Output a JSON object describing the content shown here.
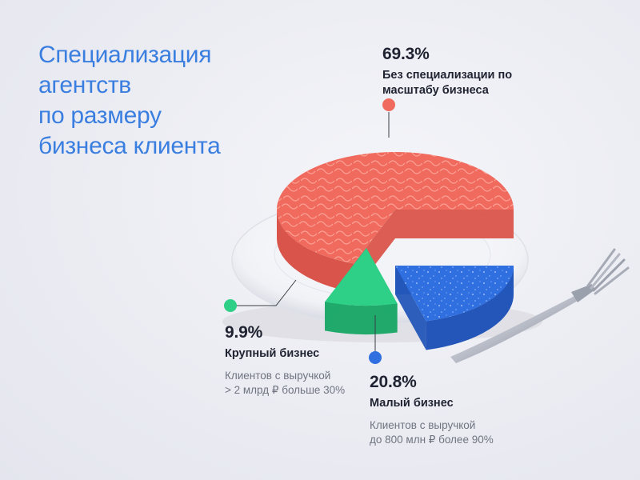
{
  "title_lines": [
    "Специализация",
    "агентств",
    "по размеру",
    "бизнеса клиента"
  ],
  "colors": {
    "title": "#3a7ee0",
    "none": "#f06a5e",
    "large": "#2ecf86",
    "small": "#2f6fe0"
  },
  "chart_data": {
    "type": "pie",
    "title": "Специализация агентств по размеру бизнеса клиента",
    "slices": [
      {
        "value": 69.3,
        "pct_label": "69.3%",
        "name": "Без специализации по масштабу бизнеса",
        "name_lines": [
          "Без специализации по",
          "масштабу бизнеса"
        ],
        "description_lines": [],
        "color": "#f06a5e"
      },
      {
        "value": 20.8,
        "pct_label": "20.8%",
        "name": "Малый бизнес",
        "name_lines": [
          "Малый бизнес"
        ],
        "description_lines": [
          "Клиентов с выручкой",
          "до 800 млн ₽ более 90%"
        ],
        "color": "#2f6fe0"
      },
      {
        "value": 9.9,
        "pct_label": "9.9%",
        "name": "Крупный бизнес",
        "name_lines": [
          "Крупный бизнес"
        ],
        "description_lines": [
          "Клиентов с выручкой",
          "> 2 млрд ₽ больше 30%"
        ],
        "color": "#2ecf86"
      }
    ]
  },
  "icons": [
    "fork-icon",
    "plate-icon"
  ]
}
